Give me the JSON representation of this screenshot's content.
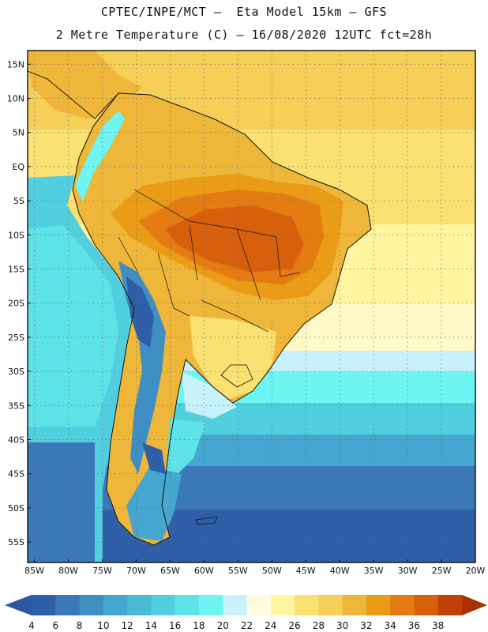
{
  "header": {
    "line1": "CPTEC/INPE/MCT –  Eta Model 15km – GFS",
    "line2": "2 Metre Temperature (C) – 16/08/2020 12UTC fct=28h"
  },
  "map": {
    "lat_range": [
      -58,
      17
    ],
    "lon_range": [
      -86,
      -20
    ],
    "lat_ticks": [
      "15N",
      "10N",
      "5N",
      "EQ",
      "5S",
      "10S",
      "15S",
      "20S",
      "25S",
      "30S",
      "35S",
      "40S",
      "45S",
      "50S",
      "55S"
    ],
    "lat_values": [
      15,
      10,
      5,
      0,
      -5,
      -10,
      -15,
      -20,
      -25,
      -30,
      -35,
      -40,
      -45,
      -50,
      -55
    ],
    "lon_ticks": [
      "85W",
      "80W",
      "75W",
      "70W",
      "65W",
      "60W",
      "55W",
      "50W",
      "45W",
      "40W",
      "35W",
      "30W",
      "25W",
      "20W"
    ],
    "lon_values": [
      -85,
      -80,
      -75,
      -70,
      -65,
      -60,
      -55,
      -50,
      -45,
      -40,
      -35,
      -30,
      -25,
      -20
    ]
  },
  "colorbar": {
    "levels": [
      "4",
      "6",
      "8",
      "10",
      "12",
      "14",
      "16",
      "18",
      "20",
      "22",
      "24",
      "26",
      "28",
      "30",
      "32",
      "34",
      "36",
      "38"
    ],
    "colors": [
      "#2e5fa8",
      "#3a78b8",
      "#3f8fc4",
      "#45a6cf",
      "#4bbad6",
      "#52cfde",
      "#5ee3e8",
      "#6cf5f2",
      "#c8f2fb",
      "#fffbe0",
      "#fff4a0",
      "#fbe072",
      "#f5cf58",
      "#efb73a",
      "#ea9c16",
      "#e47c12",
      "#d8600c",
      "#c04008"
    ],
    "low_color": "#2d57a0",
    "high_color": "#a83206"
  }
}
